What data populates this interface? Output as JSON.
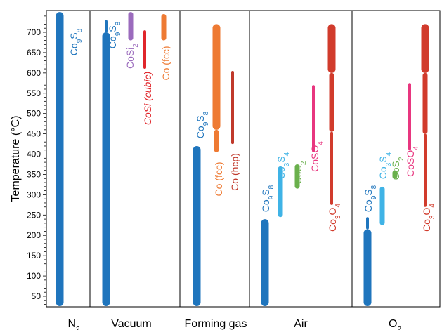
{
  "chart_data": {
    "type": "bar",
    "title": "",
    "ylabel": "Temperature (°C)",
    "xlabel": "",
    "ylim": [
      25,
      750
    ],
    "yticks": [
      50,
      100,
      150,
      200,
      250,
      300,
      350,
      400,
      450,
      500,
      550,
      600,
      650,
      700
    ],
    "panels": [
      {
        "label_parts": [
          {
            "t": "N"
          },
          {
            "t": "2",
            "sub": true
          }
        ]
      },
      {
        "label_parts": [
          {
            "t": "Vacuum"
          }
        ]
      },
      {
        "label_parts": [
          {
            "t": "Forming gas"
          }
        ]
      },
      {
        "label_parts": [
          {
            "t": "Air"
          }
        ]
      },
      {
        "label_parts": [
          {
            "t": "O"
          },
          {
            "t": "2",
            "sub": true
          }
        ]
      }
    ],
    "phases": [
      {
        "panel": 0,
        "phase": "Co9S8",
        "color": "#1f75bd",
        "label_parts": [
          {
            "t": "Co"
          },
          {
            "t": "9",
            "sub": true
          },
          {
            "t": "S"
          },
          {
            "t": "8",
            "sub": true
          }
        ],
        "segments": [
          {
            "from": 25,
            "to": 750,
            "weight": "thick"
          }
        ]
      },
      {
        "panel": 1,
        "phase": "Co9S8",
        "color": "#1f75bd",
        "label_parts": [
          {
            "t": "Co"
          },
          {
            "t": "9",
            "sub": true
          },
          {
            "t": "S"
          },
          {
            "t": "8",
            "sub": true
          }
        ],
        "segments": [
          {
            "from": 25,
            "to": 700,
            "weight": "thick"
          },
          {
            "from": 700,
            "to": 730,
            "weight": "thin"
          }
        ]
      },
      {
        "panel": 1,
        "phase": "CoSi2",
        "color": "#9b6bbd",
        "label_parts": [
          {
            "t": "CoSi"
          },
          {
            "t": "2",
            "sub": true
          }
        ],
        "segments": [
          {
            "from": 680,
            "to": 750,
            "weight": "medium"
          }
        ]
      },
      {
        "panel": 1,
        "phase": "CoSi (cubic)",
        "color": "#e0262b",
        "italic": true,
        "label_parts": [
          {
            "t": "CoSi (cubic)"
          }
        ],
        "segments": [
          {
            "from": 610,
            "to": 705,
            "weight": "thin"
          }
        ]
      },
      {
        "panel": 1,
        "phase": "Co (fcc)",
        "color": "#ee7a33",
        "label_parts": [
          {
            "t": "Co (fcc)"
          }
        ],
        "segments": [
          {
            "from": 680,
            "to": 745,
            "weight": "medium"
          }
        ]
      },
      {
        "panel": 2,
        "phase": "Co9S8",
        "color": "#1f75bd",
        "label_parts": [
          {
            "t": "Co"
          },
          {
            "t": "9",
            "sub": true
          },
          {
            "t": "S"
          },
          {
            "t": "8",
            "sub": true
          }
        ],
        "segments": [
          {
            "from": 25,
            "to": 420,
            "weight": "thick"
          }
        ]
      },
      {
        "panel": 2,
        "phase": "Co (fcc)",
        "color": "#ee7a33",
        "label_parts": [
          {
            "t": "Co (fcc)"
          }
        ],
        "segments": [
          {
            "from": 405,
            "to": 460,
            "weight": "medium"
          },
          {
            "from": 460,
            "to": 720,
            "weight": "thick"
          }
        ]
      },
      {
        "panel": 2,
        "phase": "Co (hcp)",
        "color": "#c0392b",
        "label_parts": [
          {
            "t": "Co (hcp)"
          }
        ],
        "segments": [
          {
            "from": 425,
            "to": 605,
            "weight": "thin"
          }
        ]
      },
      {
        "panel": 3,
        "phase": "Co9S8",
        "color": "#1f75bd",
        "label_parts": [
          {
            "t": "Co"
          },
          {
            "t": "9",
            "sub": true
          },
          {
            "t": "S"
          },
          {
            "t": "8",
            "sub": true
          }
        ],
        "segments": [
          {
            "from": 25,
            "to": 240,
            "weight": "thick"
          }
        ]
      },
      {
        "panel": 3,
        "phase": "Co3S4",
        "color": "#3fb3e6",
        "label_parts": [
          {
            "t": "Co"
          },
          {
            "t": "3",
            "sub": true
          },
          {
            "t": "S"
          },
          {
            "t": "4",
            "sub": true
          }
        ],
        "segments": [
          {
            "from": 245,
            "to": 370,
            "weight": "medium"
          }
        ]
      },
      {
        "panel": 3,
        "phase": "CoS2",
        "color": "#6ab04c",
        "label_parts": [
          {
            "t": "CoS"
          },
          {
            "t": "2",
            "sub": true
          }
        ],
        "segments": [
          {
            "from": 315,
            "to": 375,
            "weight": "medium"
          }
        ]
      },
      {
        "panel": 3,
        "phase": "CoSO4",
        "color": "#e8367f",
        "label_parts": [
          {
            "t": "CoSO"
          },
          {
            "t": "4",
            "sub": true
          }
        ],
        "segments": [
          {
            "from": 405,
            "to": 570,
            "weight": "thin"
          }
        ]
      },
      {
        "panel": 3,
        "phase": "Co3O4",
        "color": "#d13b2c",
        "label_parts": [
          {
            "t": "Co"
          },
          {
            "t": "3",
            "sub": true
          },
          {
            "t": "O"
          },
          {
            "t": "4",
            "sub": true
          }
        ],
        "segments": [
          {
            "from": 275,
            "to": 455,
            "weight": "thin"
          },
          {
            "from": 455,
            "to": 600,
            "weight": "medium"
          },
          {
            "from": 600,
            "to": 720,
            "weight": "thick"
          }
        ]
      },
      {
        "panel": 4,
        "phase": "Co9S8",
        "color": "#1f75bd",
        "label_parts": [
          {
            "t": "Co"
          },
          {
            "t": "9",
            "sub": true
          },
          {
            "t": "S"
          },
          {
            "t": "8",
            "sub": true
          }
        ],
        "segments": [
          {
            "from": 25,
            "to": 215,
            "weight": "thick"
          },
          {
            "from": 215,
            "to": 245,
            "weight": "thin"
          }
        ]
      },
      {
        "panel": 4,
        "phase": "Co3S4",
        "color": "#3fb3e6",
        "label_parts": [
          {
            "t": "Co"
          },
          {
            "t": "3",
            "sub": true
          },
          {
            "t": "S"
          },
          {
            "t": "4",
            "sub": true
          }
        ],
        "segments": [
          {
            "from": 225,
            "to": 320,
            "weight": "medium"
          }
        ]
      },
      {
        "panel": 4,
        "phase": "CoS2",
        "color": "#6ab04c",
        "label_parts": [
          {
            "t": "CoS"
          },
          {
            "t": "2",
            "sub": true
          }
        ],
        "segments": [
          {
            "from": 340,
            "to": 360,
            "weight": "medium"
          }
        ]
      },
      {
        "panel": 4,
        "phase": "CoSO4",
        "color": "#e8367f",
        "label_parts": [
          {
            "t": "CoSO"
          },
          {
            "t": "4",
            "sub": true
          }
        ],
        "segments": [
          {
            "from": 410,
            "to": 575,
            "weight": "thin"
          }
        ]
      },
      {
        "panel": 4,
        "phase": "Co3O4",
        "color": "#d13b2c",
        "label_parts": [
          {
            "t": "Co"
          },
          {
            "t": "3",
            "sub": true
          },
          {
            "t": "O"
          },
          {
            "t": "4",
            "sub": true
          }
        ],
        "segments": [
          {
            "from": 270,
            "to": 450,
            "weight": "thin"
          },
          {
            "from": 450,
            "to": 600,
            "weight": "medium"
          },
          {
            "from": 600,
            "to": 720,
            "weight": "thick"
          }
        ]
      }
    ]
  }
}
